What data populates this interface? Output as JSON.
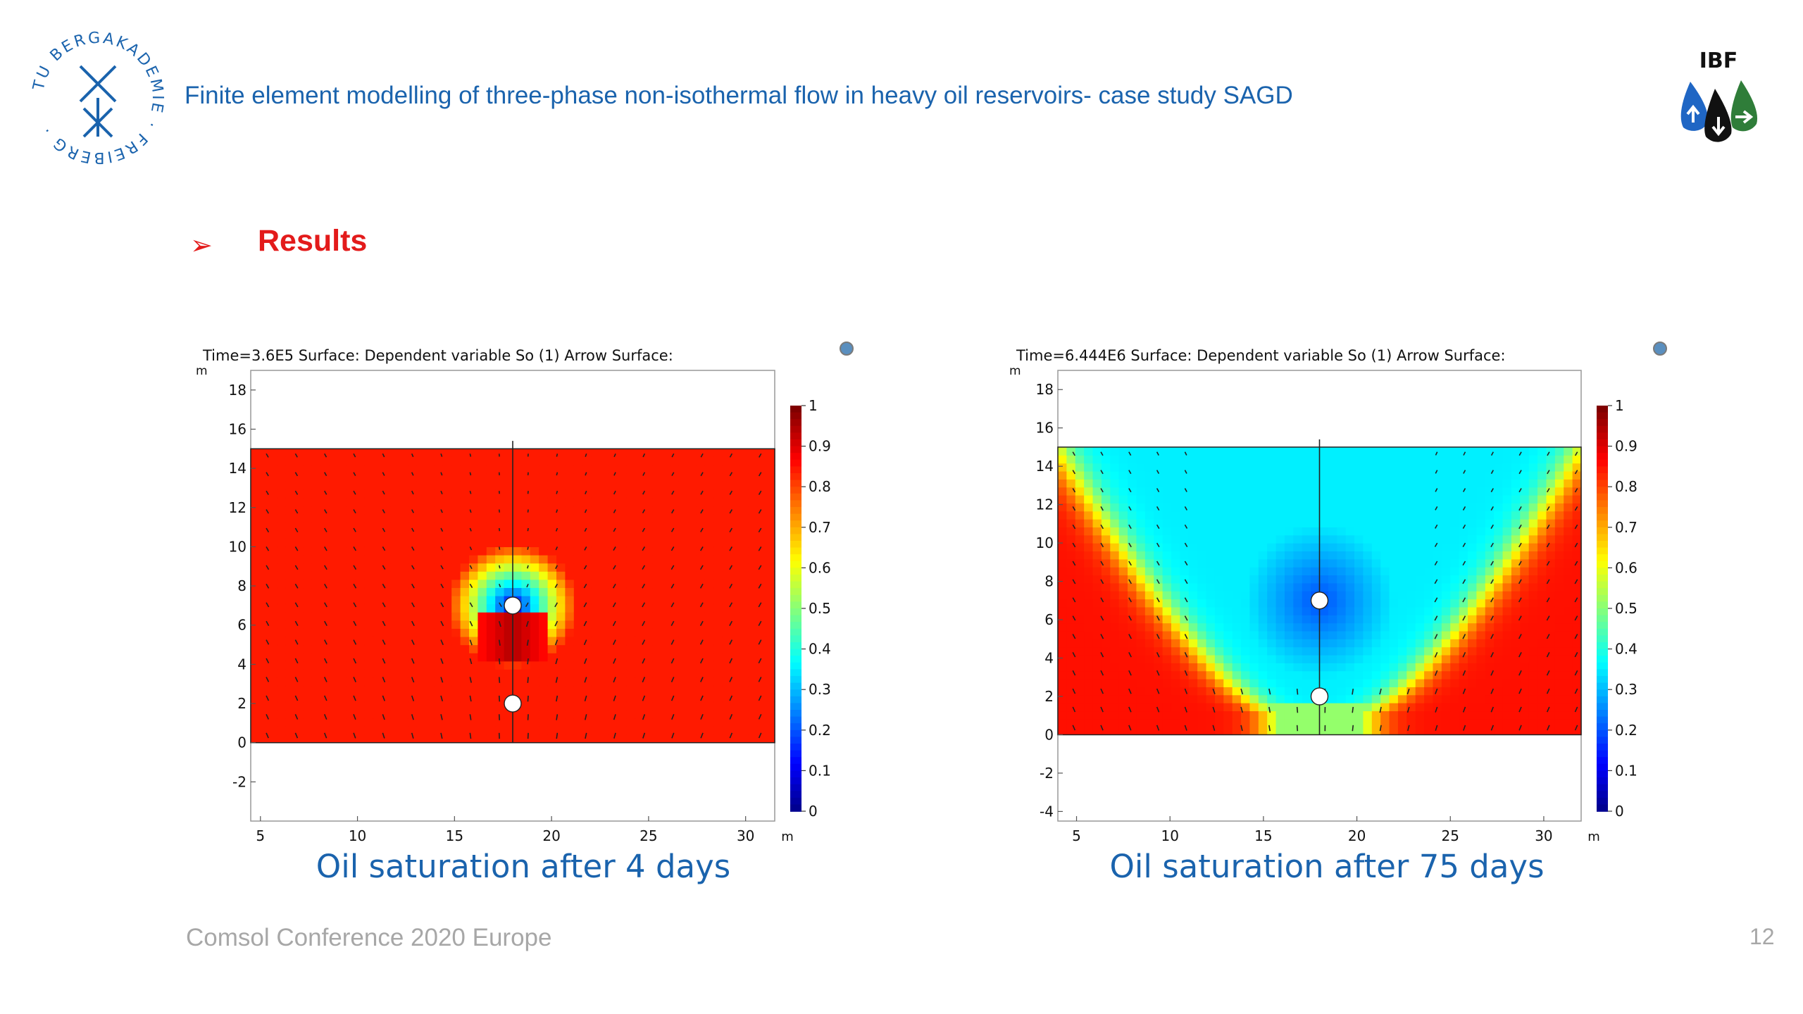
{
  "header": {
    "title": "Finite element modelling of three-phase non-isothermal flow in heavy oil reservoirs- case study SAGD",
    "logo_left_text": "TU BERGAKADEMIE FREIBERG",
    "logo_right_text": "IBF"
  },
  "section": {
    "bullet": "➢",
    "title": "Results"
  },
  "footer": {
    "conference": "Comsol Conference 2020 Europe",
    "page_number": "12"
  },
  "colors": {
    "title_blue": "#1a63ad",
    "accent_red": "#e31b1b",
    "footer_gray": "#a7a7a7"
  },
  "chart_data": [
    {
      "type": "heatmap",
      "title": "Time=3.6E5  Surface: Dependent variable So (1)  Arrow Surface:",
      "caption": "Oil saturation after 4 days",
      "unit_label": "m",
      "x_unit": "m",
      "xlim": [
        4.5,
        31.5
      ],
      "ylim": [
        -4,
        19
      ],
      "x_ticks": [
        5,
        10,
        15,
        20,
        25,
        30
      ],
      "y_ticks": [
        -2,
        0,
        2,
        4,
        6,
        8,
        10,
        12,
        14,
        16,
        18
      ],
      "domain": {
        "x": [
          4.5,
          31.5
        ],
        "y": [
          0,
          15
        ]
      },
      "colorbar": {
        "min": 0,
        "max": 1,
        "ticks": [
          "1",
          "0.9",
          "0.8",
          "0.7",
          "0.6",
          "0.5",
          "0.4",
          "0.3",
          "0.2",
          "0.1",
          "0"
        ]
      },
      "wells": [
        {
          "x": 18,
          "y": 7
        },
        {
          "x": 18,
          "y": 2
        }
      ],
      "background_saturation": 0.85
    },
    {
      "type": "heatmap",
      "title": "Time=6.444E6  Surface: Dependent variable So (1)  Arrow Surface:",
      "caption": "Oil saturation after 75 days",
      "unit_label": "m",
      "x_unit": "m",
      "xlim": [
        4,
        32
      ],
      "ylim": [
        -4.5,
        19
      ],
      "x_ticks": [
        5,
        10,
        15,
        20,
        25,
        30
      ],
      "y_ticks": [
        -4,
        -2,
        0,
        2,
        4,
        6,
        8,
        10,
        12,
        14,
        16,
        18
      ],
      "domain": {
        "x": [
          4,
          32
        ],
        "y": [
          0,
          15
        ]
      },
      "colorbar": {
        "min": 0,
        "max": 1,
        "ticks": [
          "1",
          "0.9",
          "0.8",
          "0.7",
          "0.6",
          "0.5",
          "0.4",
          "0.3",
          "0.2",
          "0.1",
          "0"
        ]
      },
      "wells": [
        {
          "x": 18,
          "y": 7
        },
        {
          "x": 18,
          "y": 2
        }
      ],
      "background_saturation": 0.85
    }
  ]
}
